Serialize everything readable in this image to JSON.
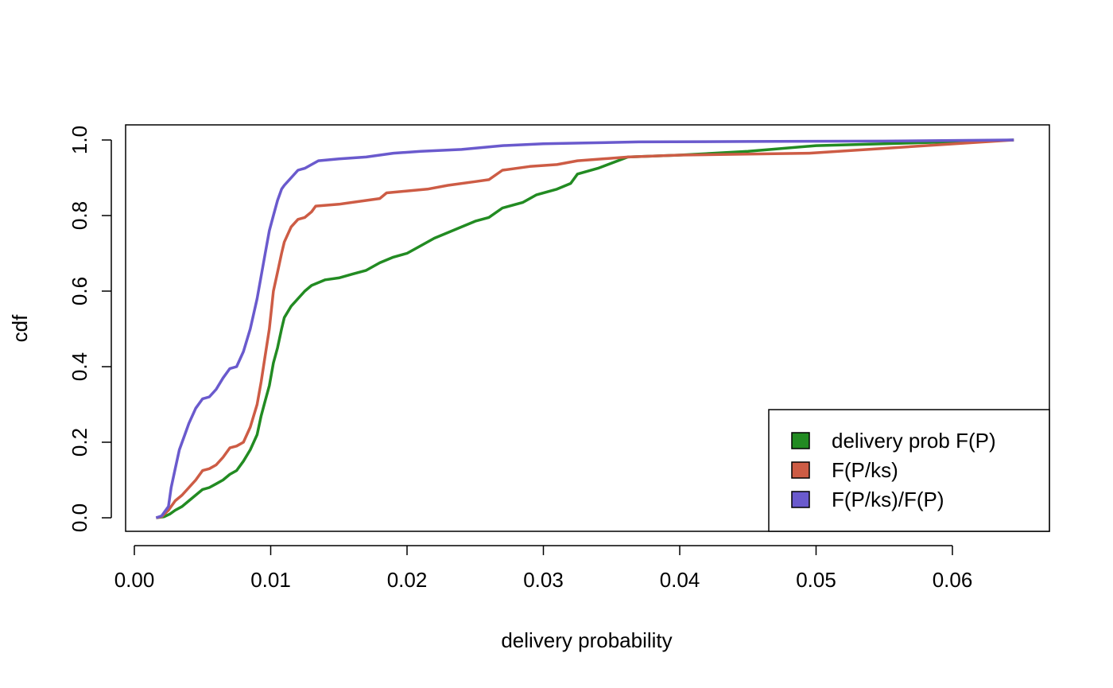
{
  "chart_data": {
    "type": "line",
    "title": "",
    "xlabel": "delivery probability",
    "ylabel": "cdf",
    "xlim": [
      0.0,
      0.065
    ],
    "ylim": [
      0.0,
      1.0
    ],
    "grid": false,
    "legend_position": "bottom-right",
    "x_ticks": [
      {
        "value": 0.0,
        "label": "0.00"
      },
      {
        "value": 0.01,
        "label": "0.01"
      },
      {
        "value": 0.02,
        "label": "0.02"
      },
      {
        "value": 0.03,
        "label": "0.03"
      },
      {
        "value": 0.04,
        "label": "0.04"
      },
      {
        "value": 0.05,
        "label": "0.05"
      },
      {
        "value": 0.06,
        "label": "0.06"
      }
    ],
    "y_ticks": [
      {
        "value": 0.0,
        "label": "0.0"
      },
      {
        "value": 0.2,
        "label": "0.2"
      },
      {
        "value": 0.4,
        "label": "0.4"
      },
      {
        "value": 0.6,
        "label": "0.6"
      },
      {
        "value": 0.8,
        "label": "0.8"
      },
      {
        "value": 1.0,
        "label": "1.0"
      }
    ],
    "series": [
      {
        "name": "delivery prob F(P)",
        "color": "#228B22",
        "points": [
          [
            0.0016,
            0.0
          ],
          [
            0.0022,
            0.003
          ],
          [
            0.0026,
            0.01
          ],
          [
            0.003,
            0.02
          ],
          [
            0.0035,
            0.03
          ],
          [
            0.004,
            0.045
          ],
          [
            0.0045,
            0.06
          ],
          [
            0.005,
            0.075
          ],
          [
            0.0055,
            0.08
          ],
          [
            0.006,
            0.09
          ],
          [
            0.0065,
            0.1
          ],
          [
            0.007,
            0.115
          ],
          [
            0.0075,
            0.125
          ],
          [
            0.008,
            0.15
          ],
          [
            0.0085,
            0.18
          ],
          [
            0.009,
            0.22
          ],
          [
            0.0093,
            0.27
          ],
          [
            0.0096,
            0.31
          ],
          [
            0.0099,
            0.35
          ],
          [
            0.0102,
            0.41
          ],
          [
            0.0105,
            0.45
          ],
          [
            0.0108,
            0.5
          ],
          [
            0.011,
            0.53
          ],
          [
            0.0115,
            0.56
          ],
          [
            0.012,
            0.58
          ],
          [
            0.0125,
            0.6
          ],
          [
            0.013,
            0.615
          ],
          [
            0.014,
            0.63
          ],
          [
            0.015,
            0.635
          ],
          [
            0.016,
            0.645
          ],
          [
            0.017,
            0.655
          ],
          [
            0.018,
            0.675
          ],
          [
            0.019,
            0.69
          ],
          [
            0.02,
            0.7
          ],
          [
            0.021,
            0.72
          ],
          [
            0.022,
            0.74
          ],
          [
            0.023,
            0.755
          ],
          [
            0.024,
            0.77
          ],
          [
            0.025,
            0.785
          ],
          [
            0.026,
            0.795
          ],
          [
            0.027,
            0.82
          ],
          [
            0.0285,
            0.835
          ],
          [
            0.0295,
            0.855
          ],
          [
            0.031,
            0.87
          ],
          [
            0.032,
            0.885
          ],
          [
            0.0325,
            0.91
          ],
          [
            0.034,
            0.925
          ],
          [
            0.0362,
            0.955
          ],
          [
            0.04,
            0.96
          ],
          [
            0.045,
            0.97
          ],
          [
            0.05,
            0.985
          ],
          [
            0.055,
            0.99
          ],
          [
            0.0645,
            1.0
          ]
        ]
      },
      {
        "name": "F(P/ks)",
        "color": "#CD5C45",
        "points": [
          [
            0.0016,
            0.0
          ],
          [
            0.002,
            0.003
          ],
          [
            0.0025,
            0.02
          ],
          [
            0.003,
            0.045
          ],
          [
            0.0035,
            0.06
          ],
          [
            0.004,
            0.08
          ],
          [
            0.0045,
            0.1
          ],
          [
            0.005,
            0.125
          ],
          [
            0.0055,
            0.13
          ],
          [
            0.006,
            0.14
          ],
          [
            0.0065,
            0.16
          ],
          [
            0.007,
            0.185
          ],
          [
            0.0075,
            0.19
          ],
          [
            0.008,
            0.2
          ],
          [
            0.0085,
            0.24
          ],
          [
            0.009,
            0.3
          ],
          [
            0.0093,
            0.36
          ],
          [
            0.0096,
            0.43
          ],
          [
            0.0099,
            0.5
          ],
          [
            0.0102,
            0.6
          ],
          [
            0.0105,
            0.65
          ],
          [
            0.0108,
            0.7
          ],
          [
            0.011,
            0.73
          ],
          [
            0.0115,
            0.77
          ],
          [
            0.012,
            0.79
          ],
          [
            0.0125,
            0.795
          ],
          [
            0.013,
            0.81
          ],
          [
            0.0133,
            0.825
          ],
          [
            0.015,
            0.83
          ],
          [
            0.017,
            0.84
          ],
          [
            0.018,
            0.845
          ],
          [
            0.0185,
            0.86
          ],
          [
            0.02,
            0.865
          ],
          [
            0.0215,
            0.87
          ],
          [
            0.023,
            0.88
          ],
          [
            0.025,
            0.89
          ],
          [
            0.026,
            0.895
          ],
          [
            0.027,
            0.92
          ],
          [
            0.029,
            0.93
          ],
          [
            0.031,
            0.935
          ],
          [
            0.0325,
            0.945
          ],
          [
            0.0362,
            0.955
          ],
          [
            0.04,
            0.96
          ],
          [
            0.0495,
            0.965
          ],
          [
            0.0645,
            1.0
          ]
        ]
      },
      {
        "name": "F(P/ks)/F(P)",
        "color": "#6A5ACD",
        "points": [
          [
            0.0016,
            0.0
          ],
          [
            0.002,
            0.005
          ],
          [
            0.0025,
            0.03
          ],
          [
            0.0027,
            0.08
          ],
          [
            0.003,
            0.13
          ],
          [
            0.0033,
            0.18
          ],
          [
            0.0037,
            0.22
          ],
          [
            0.004,
            0.25
          ],
          [
            0.0045,
            0.29
          ],
          [
            0.005,
            0.315
          ],
          [
            0.0055,
            0.32
          ],
          [
            0.006,
            0.34
          ],
          [
            0.0065,
            0.37
          ],
          [
            0.007,
            0.395
          ],
          [
            0.0075,
            0.4
          ],
          [
            0.008,
            0.44
          ],
          [
            0.0085,
            0.5
          ],
          [
            0.009,
            0.58
          ],
          [
            0.0093,
            0.64
          ],
          [
            0.0096,
            0.7
          ],
          [
            0.0099,
            0.76
          ],
          [
            0.0102,
            0.8
          ],
          [
            0.0105,
            0.84
          ],
          [
            0.0108,
            0.87
          ],
          [
            0.011,
            0.88
          ],
          [
            0.0115,
            0.9
          ],
          [
            0.012,
            0.92
          ],
          [
            0.0125,
            0.925
          ],
          [
            0.013,
            0.935
          ],
          [
            0.0135,
            0.945
          ],
          [
            0.015,
            0.95
          ],
          [
            0.017,
            0.955
          ],
          [
            0.019,
            0.965
          ],
          [
            0.021,
            0.97
          ],
          [
            0.024,
            0.975
          ],
          [
            0.027,
            0.985
          ],
          [
            0.03,
            0.99
          ],
          [
            0.033,
            0.992
          ],
          [
            0.037,
            0.995
          ],
          [
            0.045,
            0.996
          ],
          [
            0.055,
            0.997
          ],
          [
            0.0645,
            1.0
          ]
        ]
      }
    ]
  }
}
